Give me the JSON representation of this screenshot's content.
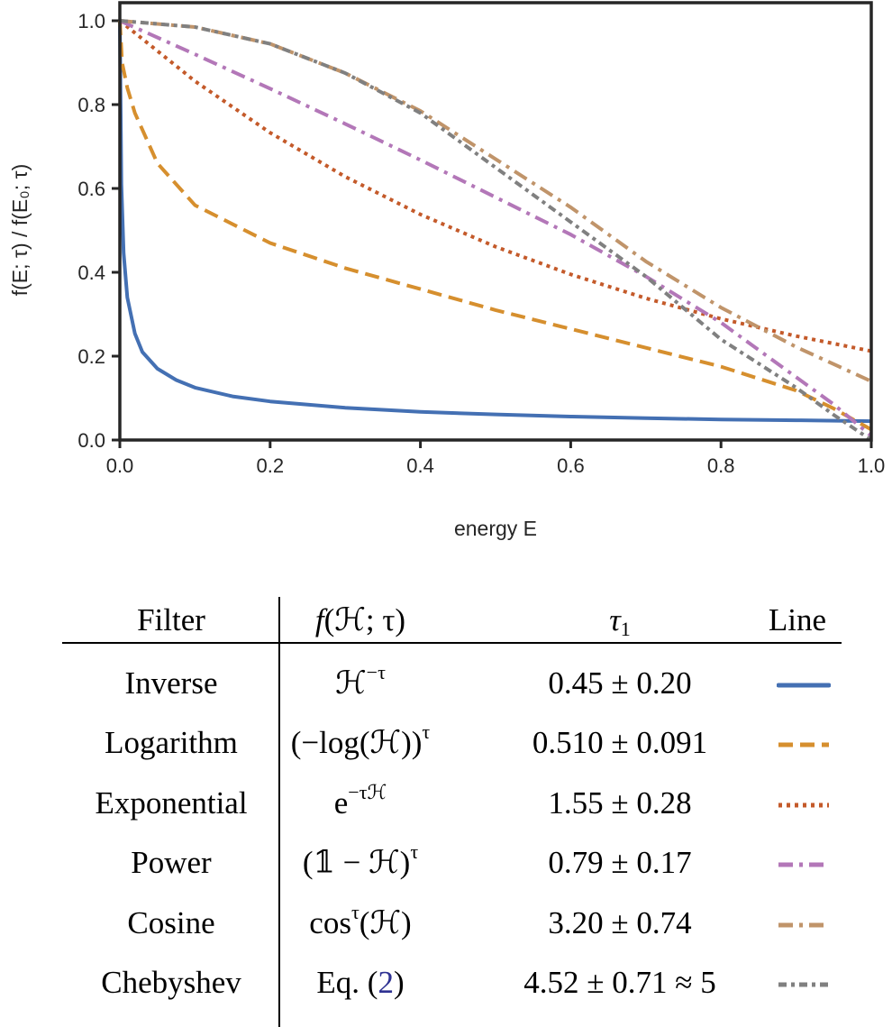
{
  "chart_data": {
    "type": "line",
    "xlabel": "energy E",
    "ylabel": "f(E; τ) / f(E₀; τ)",
    "xlim": [
      0,
      1
    ],
    "ylim": [
      0,
      1
    ],
    "xticks": [
      "0.0",
      "0.2",
      "0.4",
      "0.6",
      "0.8",
      "1.0"
    ],
    "yticks": [
      "0.0",
      "0.2",
      "0.4",
      "0.6",
      "0.8",
      "1.0"
    ],
    "grid": false,
    "legend": "none (table below)",
    "series": [
      {
        "name": "Inverse",
        "color": "#4470b3",
        "style": "solid",
        "x": [
          0,
          0.002,
          0.005,
          0.01,
          0.02,
          0.03,
          0.05,
          0.075,
          0.1,
          0.15,
          0.2,
          0.3,
          0.4,
          0.5,
          0.6,
          0.7,
          0.8,
          0.9,
          1.0
        ],
        "y": [
          1.0,
          0.61,
          0.446,
          0.34,
          0.254,
          0.21,
          0.17,
          0.143,
          0.125,
          0.104,
          0.092,
          0.077,
          0.067,
          0.061,
          0.056,
          0.052,
          0.049,
          0.047,
          0.045
        ]
      },
      {
        "name": "Logarithm",
        "color": "#d68f2e",
        "style": "dashed",
        "x": [
          0,
          0.003,
          0.01,
          0.02,
          0.05,
          0.1,
          0.2,
          0.3,
          0.4,
          0.5,
          0.6,
          0.7,
          0.8,
          0.9,
          0.95,
          1.0
        ],
        "y": [
          1.0,
          0.9,
          0.84,
          0.78,
          0.66,
          0.56,
          0.47,
          0.41,
          0.36,
          0.31,
          0.265,
          0.22,
          0.175,
          0.118,
          0.075,
          0.025
        ]
      },
      {
        "name": "Exponential",
        "color": "#c45a2a",
        "style": "dotted",
        "x": [
          0,
          0.1,
          0.2,
          0.3,
          0.4,
          0.5,
          0.6,
          0.7,
          0.8,
          0.9,
          1.0
        ],
        "y": [
          1.0,
          0.856,
          0.733,
          0.628,
          0.538,
          0.461,
          0.395,
          0.338,
          0.289,
          0.248,
          0.212
        ]
      },
      {
        "name": "Power",
        "color": "#b377b8",
        "style": "dashdot",
        "x": [
          0,
          0.1,
          0.2,
          0.3,
          0.4,
          0.5,
          0.6,
          0.7,
          0.8,
          0.9,
          0.95,
          1.0
        ],
        "y": [
          1.0,
          0.92,
          0.838,
          0.754,
          0.668,
          0.579,
          0.49,
          0.39,
          0.28,
          0.15,
          0.085,
          0.01
        ]
      },
      {
        "name": "Cosine",
        "color": "#c0946a",
        "style": "dashdot",
        "x": [
          0,
          0.1,
          0.2,
          0.3,
          0.4,
          0.5,
          0.6,
          0.7,
          0.8,
          0.9,
          1.0
        ],
        "y": [
          1.0,
          0.985,
          0.945,
          0.875,
          0.785,
          0.67,
          0.555,
          0.426,
          0.316,
          0.222,
          0.14
        ]
      },
      {
        "name": "Chebyshev",
        "color": "#808080",
        "style": "dashdotdot",
        "x": [
          0,
          0.1,
          0.2,
          0.3,
          0.4,
          0.5,
          0.6,
          0.7,
          0.8,
          0.9,
          0.95,
          1.0
        ],
        "y": [
          1.0,
          0.985,
          0.945,
          0.875,
          0.78,
          0.65,
          0.52,
          0.39,
          0.24,
          0.125,
          0.06,
          0.0
        ]
      }
    ]
  },
  "table": {
    "headers": {
      "filter": "Filter",
      "f_pre": "f",
      "f_post": "(ℋ; τ)",
      "tau": "τ",
      "tau_sub": "1",
      "line": "Line"
    },
    "rows": [
      {
        "filter": "Inverse",
        "pre": "ℋ",
        "sup": "−τ",
        "ref": "",
        "post": "",
        "tau": "0.45 ± 0.20"
      },
      {
        "filter": "Logarithm",
        "pre": "(−log(ℋ))",
        "sup": "τ",
        "ref": "",
        "post": "",
        "tau": "0.510 ± 0.091"
      },
      {
        "filter": "Exponential",
        "pre": "e",
        "sup": "−τℋ",
        "ref": "",
        "post": "",
        "tau": "1.55 ± 0.28"
      },
      {
        "filter": "Power",
        "pre": "(𝟙 − ℋ)",
        "sup": "τ",
        "ref": "",
        "post": "",
        "tau": "0.79 ± 0.17"
      },
      {
        "filter": "Cosine",
        "pre": "cos",
        "sup": "τ",
        "ref": "",
        "post": "(ℋ)",
        "tau": "3.20 ± 0.74"
      },
      {
        "filter": "Chebyshev",
        "pre": "Eq. (",
        "sup": "",
        "ref": "2",
        "post": ")",
        "tau": "4.52 ± 0.71 ≈ 5"
      }
    ]
  }
}
